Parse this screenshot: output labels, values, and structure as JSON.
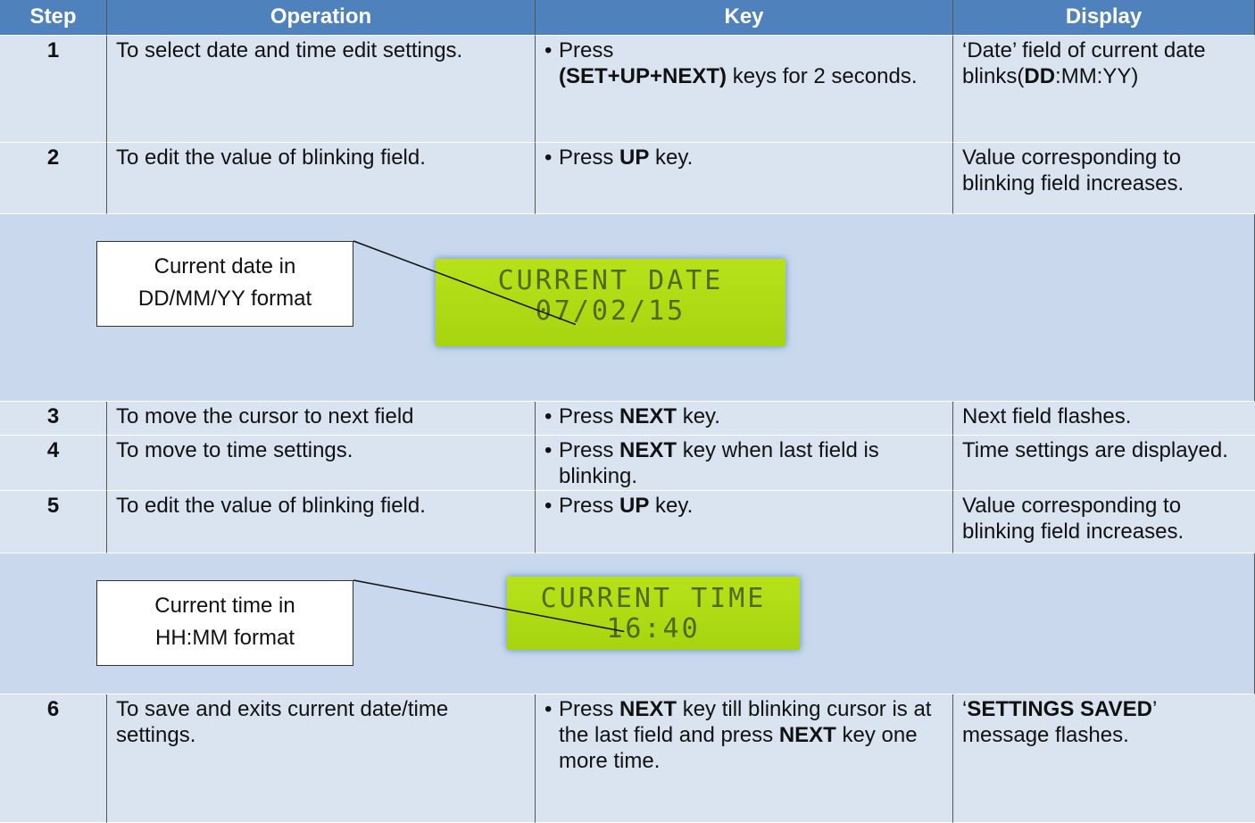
{
  "header": [
    "Step",
    "Operation",
    "Key",
    "Display"
  ],
  "rows": [
    {
      "step": "1",
      "operation": "To select date and time edit settings.",
      "key": [
        {
          "text": "Press",
          "line_break": true
        },
        {
          "text": "(SET+UP+NEXT)",
          "bold": true
        },
        {
          "text": " keys for 2 seconds."
        }
      ],
      "display": [
        {
          "text": "‘Date’ field of current date blinks("
        },
        {
          "text": "DD",
          "bold": true
        },
        {
          "text": ":MM:YY)"
        }
      ]
    },
    {
      "step": "2",
      "operation": "To edit the value of blinking field.",
      "key": [
        {
          "text": "Press "
        },
        {
          "text": "UP",
          "bold": true
        },
        {
          "text": " key."
        }
      ],
      "display": [
        {
          "text": "Value corresponding to blinking field increases."
        }
      ]
    },
    {
      "callout": [
        "Current date in",
        "DD/MM/YY format"
      ],
      "lcd": [
        "CURRENT DATE",
        "07/02/15"
      ]
    },
    {
      "step": "3",
      "operation": "To move the cursor to next field",
      "key": [
        {
          "text": "Press "
        },
        {
          "text": "NEXT",
          "bold": true
        },
        {
          "text": "   key."
        }
      ],
      "display": [
        {
          "text": "Next field flashes."
        }
      ]
    },
    {
      "step": "4",
      "operation": "To move to time settings.",
      "key": [
        {
          "text": "Press "
        },
        {
          "text": "NEXT",
          "bold": true
        },
        {
          "text": " key when last field is blinking."
        }
      ],
      "display": [
        {
          "text": "Time settings are displayed."
        }
      ]
    },
    {
      "step": "5",
      "operation": "To edit the value of blinking field.",
      "key": [
        {
          "text": "Press "
        },
        {
          "text": "UP",
          "bold": true
        },
        {
          "text": "   key."
        }
      ],
      "display": [
        {
          "text": "Value corresponding to blinking field increases."
        }
      ]
    },
    {
      "callout": [
        "Current time in",
        "HH:MM format"
      ],
      "lcd": [
        "CURRENT TIME",
        "16:40"
      ]
    },
    {
      "step": "6",
      "operation": "To save and exits current date/time settings.",
      "key": [
        {
          "text": "Press "
        },
        {
          "text": "NEXT",
          "bold": true
        },
        {
          "text": " key till blinking cursor is at the last field and press "
        },
        {
          "text": "NEXT",
          "bold": true
        },
        {
          "text": " key one more time."
        }
      ],
      "display": [
        {
          "text": "‘"
        },
        {
          "text": "SETTINGS SAVED",
          "bold": true
        },
        {
          "text": "’ message flashes."
        }
      ]
    }
  ]
}
